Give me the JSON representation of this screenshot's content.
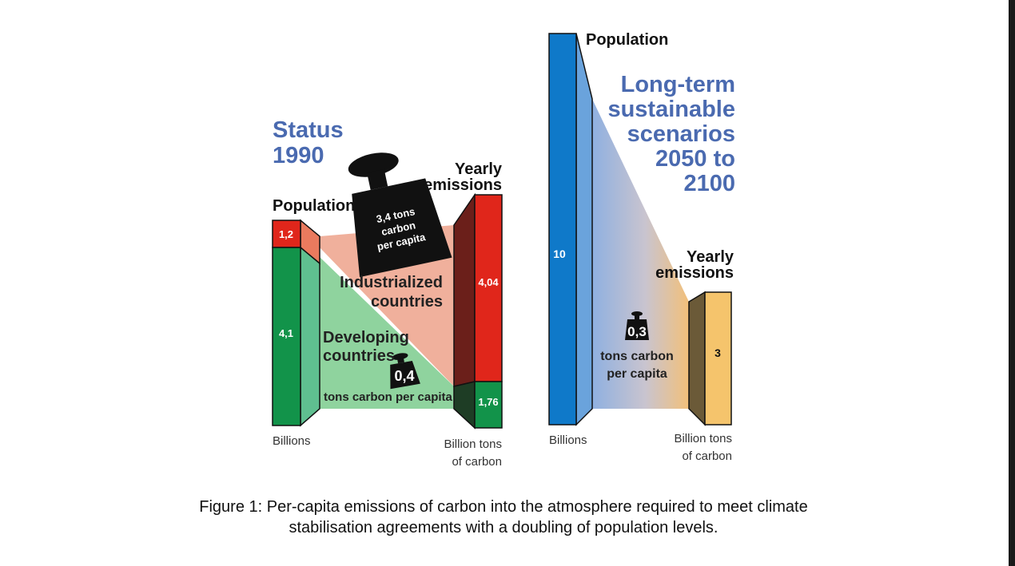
{
  "left_panel": {
    "title": [
      "Status",
      "1990"
    ],
    "population_label": "Population",
    "emissions_label": [
      "Yearly",
      "emissions"
    ],
    "weight_text": [
      "3,4 tons",
      "carbon",
      "per capita"
    ],
    "industrialized_label": [
      "Industrialized",
      "countries"
    ],
    "developing_label": [
      "Developing",
      "countries"
    ],
    "small_weight_value": "0,4",
    "small_weight_caption": "tons carbon per capita",
    "pop_industrialized": "1,2",
    "pop_developing": "4,1",
    "emis_industrialized": "4,04",
    "emis_developing": "1,76",
    "pop_unit": "Billions",
    "emis_unit": [
      "Billion tons",
      "of carbon"
    ]
  },
  "right_panel": {
    "population_label": "Population",
    "title": [
      "Long-term",
      "sustainable",
      "scenarios",
      "2050 to",
      "2100"
    ],
    "emissions_label": [
      "Yearly",
      "emissions"
    ],
    "pop_value": "10",
    "emis_value": "3",
    "weight_value": "0,3",
    "weight_caption": [
      "tons carbon",
      "per capita"
    ],
    "pop_unit": "Billions",
    "emis_unit": [
      "Billion tons",
      "of carbon"
    ]
  },
  "caption": [
    "Figure 1: Per-capita emissions of carbon into the atmosphere required to meet climate",
    "stabilisation agreements with a doubling of population levels."
  ],
  "colors": {
    "title_blue": "#4a6ab0",
    "industrial_red": "#e0261b",
    "developing_green": "#12934a",
    "pop_blue": "#0f79c9",
    "emis_yellow": "#f5c46c"
  }
}
